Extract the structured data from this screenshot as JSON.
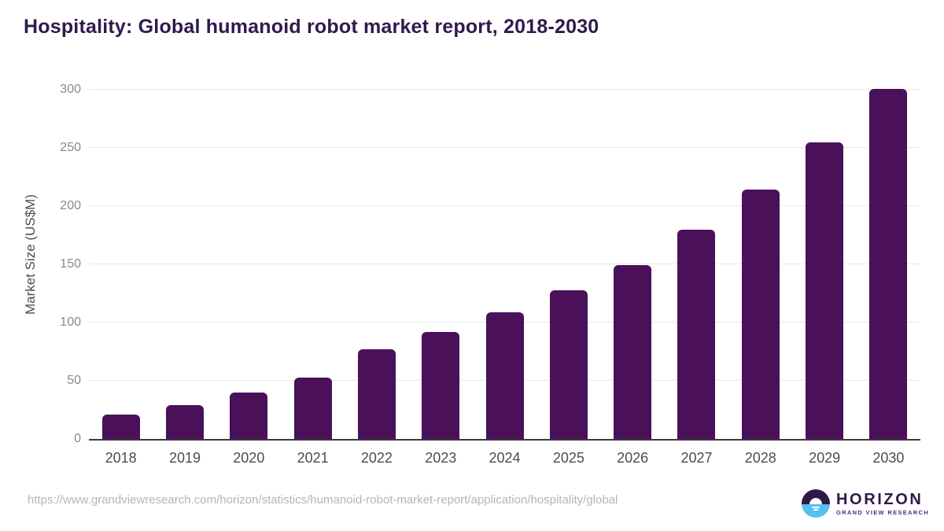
{
  "page": {
    "title": "Hospitality: Global humanoid robot market report, 2018-2030",
    "source_url": "https://www.grandviewresearch.com/horizon/statistics/humanoid-robot-market-report/application/hospitality/global"
  },
  "logo": {
    "name": "HORIZON",
    "subtitle": "GRAND VIEW RESEARCH",
    "icon": "sunrise-horizon-icon"
  },
  "colors": {
    "bar": "#4a1059",
    "title": "#2f1a4d",
    "axis": "#3b3b3b",
    "grid": "#e8e8e8",
    "tick_label": "#8a8a8a",
    "x_label": "#4d4d4d",
    "url": "#b5b5b5",
    "logo_purple": "#2e1a47",
    "logo_blue": "#56c1ee",
    "logo_sub": "#4f2b7c"
  },
  "chart_data": {
    "type": "bar",
    "title": "Hospitality: Global humanoid robot market report, 2018-2030",
    "categories": [
      "2018",
      "2019",
      "2020",
      "2021",
      "2022",
      "2023",
      "2024",
      "2025",
      "2026",
      "2027",
      "2028",
      "2029",
      "2030"
    ],
    "values": [
      21,
      29,
      40,
      53,
      77,
      92,
      109,
      128,
      149,
      180,
      214,
      255,
      301
    ],
    "xlabel": "",
    "ylabel": "Market Size (US$M)",
    "ylim": [
      0,
      300
    ],
    "yticks": [
      0,
      50,
      100,
      150,
      200,
      250,
      300
    ],
    "grid": "horizontal-light",
    "legend": "none",
    "bar_color": "#4a1059"
  }
}
